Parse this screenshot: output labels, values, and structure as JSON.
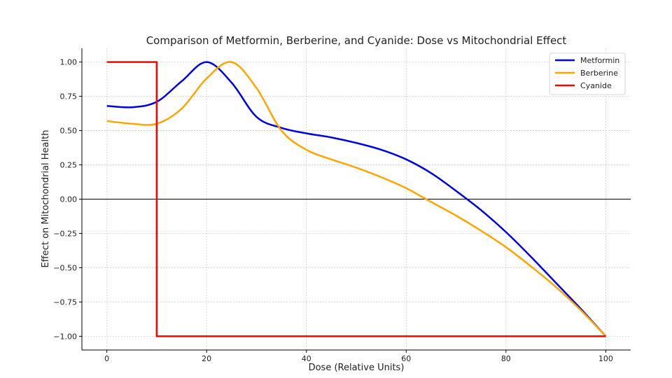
{
  "chart_data": {
    "type": "line",
    "title": "Comparison of Metformin, Berberine, and Cyanide: Dose vs Mitochondrial Effect",
    "xlabel": "Dose (Relative Units)",
    "ylabel": "Effect on Mitochondrial Health",
    "xlim": [
      -5,
      105
    ],
    "ylim": [
      -1.1,
      1.1
    ],
    "xticks": [
      0,
      20,
      40,
      60,
      80,
      100
    ],
    "yticks": [
      1.0,
      0.75,
      0.5,
      0.25,
      0.0,
      -0.25,
      -0.5,
      -0.75,
      -1.0
    ],
    "ytick_labels": [
      "1.00",
      "0.75",
      "0.50",
      "0.25",
      "0.00",
      "−0.25",
      "−0.50",
      "−0.75",
      "−1.00"
    ],
    "xtick_labels": [
      "0",
      "20",
      "40",
      "60",
      "80",
      "100"
    ],
    "grid": true,
    "zero_line": true,
    "legend_position": "top-right",
    "series": [
      {
        "name": "Metformin",
        "color": "#0000e6",
        "x": [
          0,
          5,
          10,
          15,
          20,
          25,
          30,
          35,
          40,
          45,
          50,
          55,
          60,
          65,
          70,
          75,
          80,
          85,
          90,
          95,
          100
        ],
        "y": [
          0.68,
          0.67,
          0.71,
          0.86,
          1.0,
          0.85,
          0.6,
          0.52,
          0.48,
          0.45,
          0.41,
          0.36,
          0.29,
          0.19,
          0.06,
          -0.08,
          -0.24,
          -0.42,
          -0.61,
          -0.8,
          -1.0
        ]
      },
      {
        "name": "Berberine",
        "color": "#ffa500",
        "x": [
          0,
          5,
          10,
          15,
          20,
          25,
          30,
          35,
          40,
          45,
          50,
          55,
          60,
          65,
          70,
          75,
          80,
          85,
          90,
          95,
          100
        ],
        "y": [
          0.57,
          0.55,
          0.55,
          0.66,
          0.88,
          1.0,
          0.81,
          0.5,
          0.36,
          0.29,
          0.23,
          0.16,
          0.08,
          -0.02,
          -0.12,
          -0.23,
          -0.35,
          -0.49,
          -0.64,
          -0.81,
          -1.0
        ]
      },
      {
        "name": "Cyanide",
        "color": "#ff0000",
        "x": [
          0,
          10,
          10,
          100
        ],
        "y": [
          1.0,
          1.0,
          -1.0,
          -1.0
        ]
      }
    ]
  }
}
